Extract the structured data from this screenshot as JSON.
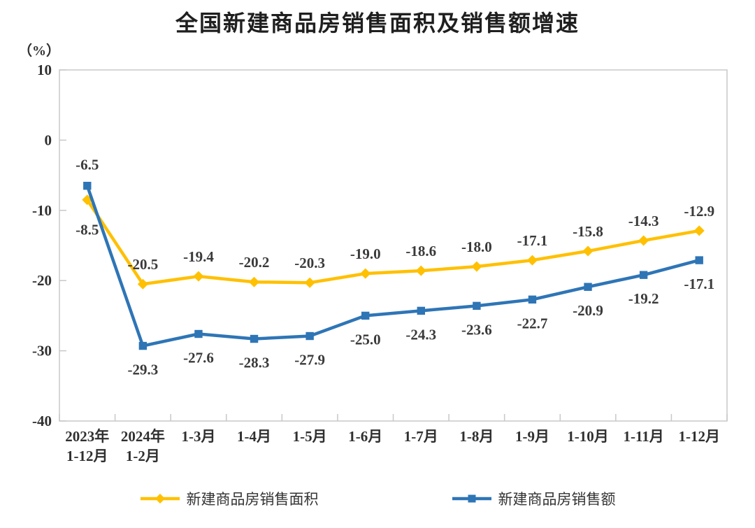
{
  "chart_data": {
    "type": "line",
    "title": "全国新建商品房销售面积及销售额增速",
    "unit_label": "（%）",
    "xlabel": "",
    "ylabel": "（%）",
    "categories": [
      "2023年\n1-12月",
      "2024年\n1-2月",
      "1-3月",
      "1-4月",
      "1-5月",
      "1-6月",
      "1-7月",
      "1-8月",
      "1-9月",
      "1-10月",
      "1-11月",
      "1-12月"
    ],
    "ylim": [
      -40,
      10
    ],
    "yticks": [
      10,
      0,
      -10,
      -20,
      -30,
      -40
    ],
    "grid": false,
    "legend_position": "bottom",
    "series": [
      {
        "name": "新建商品房销售面积",
        "color": "#FFC000",
        "marker": "diamond",
        "values": [
          -8.5,
          -20.5,
          -19.4,
          -20.2,
          -20.3,
          -19.0,
          -18.6,
          -18.0,
          -17.1,
          -15.8,
          -14.3,
          -12.9
        ],
        "labels": [
          "-8.5",
          "-20.5",
          "-19.4",
          "-20.2",
          "-20.3",
          "-19.0",
          "-18.6",
          "-18.0",
          "-17.1",
          "-15.8",
          "-14.3",
          "-12.9"
        ],
        "label_sides": [
          "below",
          "above",
          "above",
          "above",
          "above",
          "above",
          "above",
          "above",
          "above",
          "above",
          "above",
          "above"
        ]
      },
      {
        "name": "新建商品房销售额",
        "color": "#2E75B6",
        "marker": "square",
        "values": [
          -6.5,
          -29.3,
          -27.6,
          -28.3,
          -27.9,
          -25.0,
          -24.3,
          -23.6,
          -22.7,
          -20.9,
          -19.2,
          -17.1
        ],
        "labels": [
          "-6.5",
          "-29.3",
          "-27.6",
          "-28.3",
          "-27.9",
          "-25.0",
          "-24.3",
          "-23.6",
          "-22.7",
          "-20.9",
          "-19.2",
          "-17.1"
        ],
        "label_sides": [
          "above",
          "below",
          "below",
          "below",
          "below",
          "below",
          "below",
          "below",
          "below",
          "below",
          "below",
          "below"
        ]
      }
    ],
    "colors": {
      "axis": "#C8C8C8",
      "tick_text": "#303030",
      "data_label_text": "#3a3a3a",
      "title_text": "#1f1f1f"
    }
  }
}
